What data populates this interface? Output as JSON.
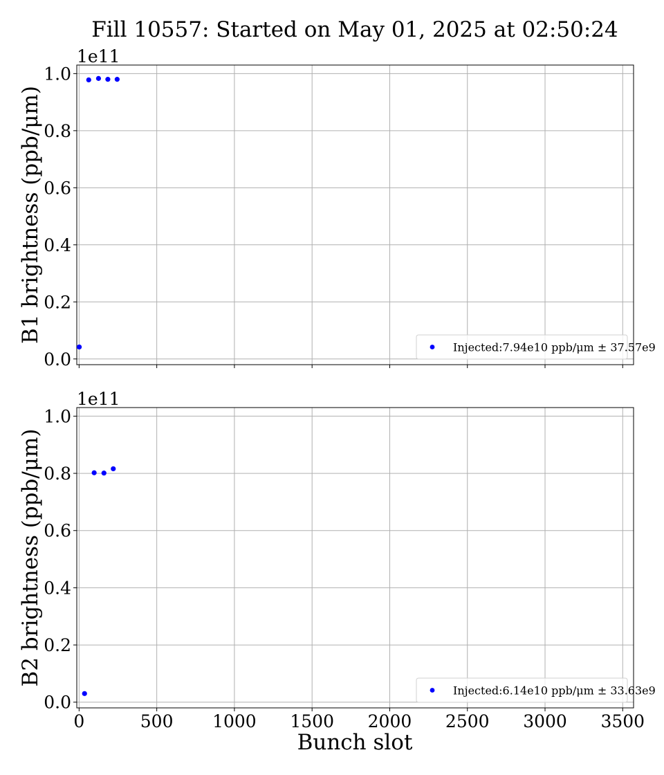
{
  "chart_data": {
    "title": "Fill 10557: Started on May 01, 2025 at 02:50:24",
    "xlabel": "Bunch slot",
    "x_ticks": [
      "0",
      "500",
      "1000",
      "1500",
      "2000",
      "2500",
      "3000",
      "3500"
    ],
    "xlim": [
      -15,
      3570
    ],
    "grid": true,
    "panels": [
      {
        "type": "scatter",
        "ylabel": "B1 brightness (ppb/μm)",
        "y_offset_label": "1e11",
        "ylim": [
          -0.02,
          1.03
        ],
        "y_ticks": [
          "0.0",
          "0.2",
          "0.4",
          "0.6",
          "0.8",
          "1.0"
        ],
        "legend_position": "lower right",
        "series": [
          {
            "name": "Injected:7.94e10 ppb/μm ± 37.57e9",
            "color": "#0000ff",
            "x": [
              1,
              62,
              125,
              185,
              245
            ],
            "y": [
              0.042,
              0.978,
              0.983,
              0.98,
              0.98
            ]
          }
        ]
      },
      {
        "type": "scatter",
        "ylabel": "B2 brightness (ppb/μm)",
        "y_offset_label": "1e11",
        "ylim": [
          -0.02,
          1.03
        ],
        "y_ticks": [
          "0.0",
          "0.2",
          "0.4",
          "0.6",
          "0.8",
          "1.0"
        ],
        "legend_position": "lower right",
        "series": [
          {
            "name": "Injected:6.14e10 ppb/μm ± 33.63e9",
            "color": "#0000ff",
            "x": [
              35,
              97,
              160,
              220
            ],
            "y": [
              0.03,
              0.802,
              0.801,
              0.816
            ]
          }
        ]
      }
    ]
  }
}
